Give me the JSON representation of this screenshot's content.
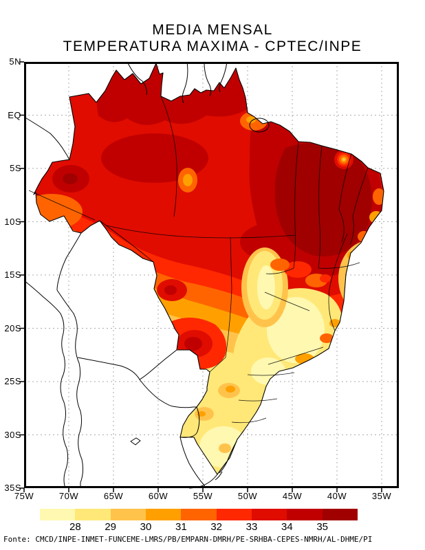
{
  "title": {
    "line1": "MEDIA MENSAL",
    "line2": "TEMPERATURA MAXIMA - CPTEC/INPE"
  },
  "map": {
    "lat_labels": [
      "5N",
      "EQ",
      "5S",
      "10S",
      "15S",
      "20S",
      "25S",
      "30S",
      "35S"
    ],
    "lon_labels": [
      "75W",
      "70W",
      "65W",
      "60W",
      "55W",
      "50W",
      "45W",
      "40W",
      "35W"
    ]
  },
  "colorbar": {
    "tick_labels": [
      "28",
      "29",
      "30",
      "31",
      "32",
      "33",
      "34",
      "35"
    ],
    "values": [
      28,
      29,
      30,
      31,
      32,
      33,
      34,
      35
    ],
    "colors": [
      "#FFF8B0",
      "#FFE878",
      "#FFC34C",
      "#FFA000",
      "#FF6400",
      "#FF2800",
      "#E00C00",
      "#C00000",
      "#A00000"
    ]
  },
  "footer": {
    "text": "Fonte: CMCD/INPE-INMET-FUNCEME-LMRS/PB/EMPARN-DMRH/PE-SRHBA-CEPES-NMRH/AL-DHME/PI"
  },
  "chart_data": {
    "type": "heatmap",
    "title": "MEDIA MENSAL TEMPERATURA MAXIMA - CPTEC/INPE",
    "region": "Brazil / South America",
    "xlabel_ticks": [
      "75W",
      "70W",
      "65W",
      "60W",
      "55W",
      "50W",
      "45W",
      "40W",
      "35W"
    ],
    "ylabel_ticks": [
      "5N",
      "EQ",
      "5S",
      "10S",
      "15S",
      "20S",
      "25S",
      "30S",
      "35S"
    ],
    "legend_bins_degC": [
      28,
      29,
      30,
      31,
      32,
      33,
      34,
      35
    ],
    "legend_colors": [
      "#FFF8B0",
      "#FFE878",
      "#FFC34C",
      "#FFA000",
      "#FF6400",
      "#FF2800",
      "#E00C00",
      "#C00000",
      "#A00000"
    ],
    "qualitative_field": {
      "amazon_north": "33-35",
      "northeast_interior": ">35",
      "central_west": "30-33",
      "southeast_minas_sao_paulo": "27-29",
      "south": "27-29",
      "mato_grosso_do_sul_hotspot": "34-35"
    },
    "grid": "dotted gray every 5 degrees",
    "legend_position": "bottom horizontal"
  }
}
